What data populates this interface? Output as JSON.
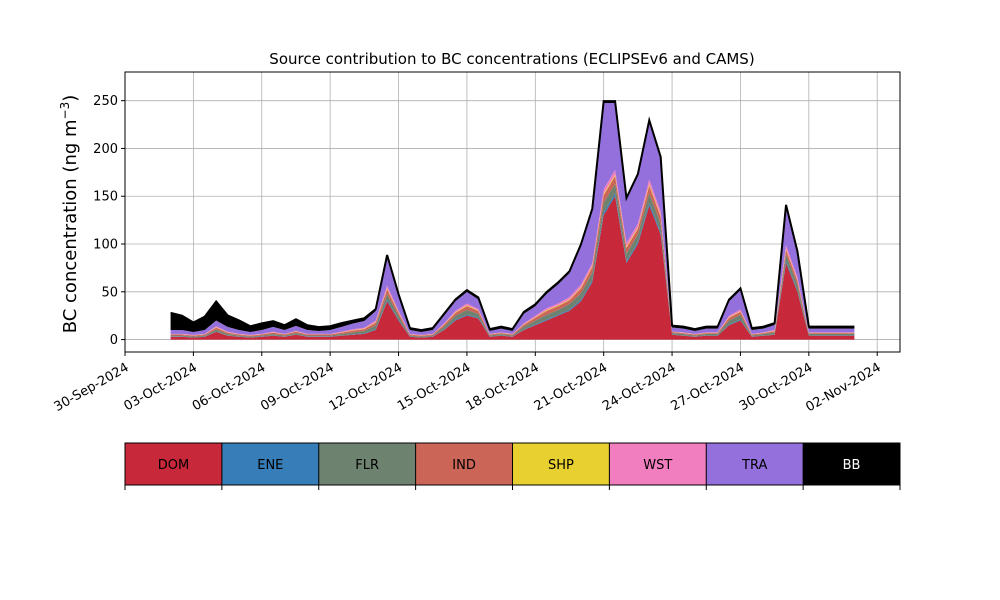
{
  "chart_data": {
    "type": "area",
    "stacked": true,
    "title": "Source contribution to BC concentrations (ECLIPSEv6 and CAMS)",
    "ylabel_main": "BC concentration (ng m",
    "ylabel_sup": "−3",
    "ylabel_close": ")",
    "xlabel": "",
    "ylim": [
      -13,
      280
    ],
    "xlim": [
      "2024-09-30",
      "2024-11-03"
    ],
    "grid": true,
    "x_ticks": [
      "30-Sep-2024",
      "03-Oct-2024",
      "06-Oct-2024",
      "09-Oct-2024",
      "12-Oct-2024",
      "15-Oct-2024",
      "18-Oct-2024",
      "21-Oct-2024",
      "24-Oct-2024",
      "27-Oct-2024",
      "30-Oct-2024",
      "02-Nov-2024"
    ],
    "y_ticks": [
      0,
      50,
      100,
      150,
      200,
      250
    ],
    "x": [
      "2024-10-02",
      "2024-10-02T12:00",
      "2024-10-03",
      "2024-10-03T12:00",
      "2024-10-04",
      "2024-10-04T12:00",
      "2024-10-05",
      "2024-10-05T12:00",
      "2024-10-06",
      "2024-10-06T12:00",
      "2024-10-07",
      "2024-10-07T12:00",
      "2024-10-08",
      "2024-10-08T12:00",
      "2024-10-09",
      "2024-10-09T12:00",
      "2024-10-10",
      "2024-10-10T12:00",
      "2024-10-11",
      "2024-10-11T12:00",
      "2024-10-12",
      "2024-10-12T12:00",
      "2024-10-13",
      "2024-10-13T12:00",
      "2024-10-14",
      "2024-10-14T12:00",
      "2024-10-15",
      "2024-10-15T12:00",
      "2024-10-16",
      "2024-10-16T12:00",
      "2024-10-17",
      "2024-10-17T12:00",
      "2024-10-18",
      "2024-10-18T12:00",
      "2024-10-19",
      "2024-10-19T12:00",
      "2024-10-20",
      "2024-10-20T12:00",
      "2024-10-21",
      "2024-10-21T12:00",
      "2024-10-22",
      "2024-10-22T12:00",
      "2024-10-23",
      "2024-10-23T12:00",
      "2024-10-24",
      "2024-10-24T12:00",
      "2024-10-25",
      "2024-10-25T12:00",
      "2024-10-26",
      "2024-10-26T12:00",
      "2024-10-27",
      "2024-10-27T12:00",
      "2024-10-28",
      "2024-10-28T12:00",
      "2024-10-29",
      "2024-10-29T12:00",
      "2024-10-30",
      "2024-10-30T12:00",
      "2024-10-31",
      "2024-10-31T12:00",
      "2024-11-01"
    ],
    "series": [
      {
        "name": "DOM",
        "color": "#c7283a",
        "values": [
          3,
          3,
          2,
          3,
          8,
          4,
          3,
          2,
          3,
          4,
          3,
          5,
          3,
          3,
          3,
          4,
          5,
          6,
          10,
          40,
          20,
          3,
          2,
          3,
          10,
          20,
          25,
          22,
          3,
          4,
          3,
          10,
          15,
          20,
          25,
          30,
          40,
          60,
          130,
          150,
          80,
          100,
          140,
          110,
          5,
          4,
          3,
          4,
          4,
          15,
          20,
          3,
          4,
          5,
          80,
          50,
          4,
          4,
          4,
          4,
          4
        ]
      },
      {
        "name": "ENE",
        "color": "#377eb8",
        "values": [
          0.3,
          0.3,
          0.2,
          0.3,
          0.5,
          0.3,
          0.3,
          0.2,
          0.3,
          0.3,
          0.3,
          0.3,
          0.3,
          0.3,
          0.3,
          0.3,
          0.4,
          0.5,
          0.8,
          1.5,
          1,
          0.3,
          0.2,
          0.3,
          0.6,
          1,
          1,
          1,
          0.3,
          0.3,
          0.3,
          0.6,
          0.8,
          1,
          1,
          1.2,
          1.5,
          2,
          3,
          3,
          2,
          2,
          3,
          2.5,
          0.4,
          0.3,
          0.3,
          0.3,
          0.3,
          0.8,
          1,
          0.3,
          0.3,
          0.4,
          2,
          1.5,
          0.3,
          0.3,
          0.3,
          0.3,
          0.3
        ]
      },
      {
        "name": "FLR",
        "color": "#6e8270",
        "values": [
          1,
          1,
          1,
          1,
          2,
          1.5,
          1,
          1,
          1,
          1.5,
          1,
          1.5,
          1,
          1,
          1,
          1.5,
          2,
          2.5,
          4,
          6,
          4,
          1,
          1,
          1,
          3,
          4,
          5,
          4,
          1,
          1.5,
          1,
          3,
          4,
          5,
          5,
          6,
          7,
          8,
          10,
          10,
          8,
          8,
          10,
          9,
          1.5,
          1.5,
          1,
          1.5,
          1.5,
          4,
          5,
          1,
          1.5,
          2,
          7,
          6,
          1.5,
          1.5,
          1.5,
          1.5,
          1.5
        ]
      },
      {
        "name": "IND",
        "color": "#ca6558",
        "values": [
          1,
          1,
          1,
          1,
          2,
          1.5,
          1,
          1,
          1,
          1.5,
          1,
          1.5,
          1,
          1,
          1,
          1.5,
          2,
          2,
          3,
          5,
          3,
          1,
          1,
          1,
          2,
          3,
          4,
          3,
          1,
          1,
          1,
          2,
          3,
          4,
          4,
          4,
          5,
          6,
          8,
          8,
          6,
          6,
          8,
          7,
          1,
          1,
          1,
          1,
          1,
          3,
          3,
          1,
          1,
          1.5,
          5,
          4,
          1,
          1,
          1,
          1,
          1
        ]
      },
      {
        "name": "SHP",
        "color": "#e8d030",
        "values": [
          0.2,
          0.2,
          0.2,
          0.2,
          0.4,
          0.3,
          0.2,
          0.2,
          0.2,
          0.3,
          0.2,
          0.3,
          0.2,
          0.2,
          0.2,
          0.3,
          0.4,
          0.4,
          0.6,
          1,
          0.6,
          0.2,
          0.2,
          0.2,
          0.4,
          0.6,
          0.8,
          0.6,
          0.2,
          0.2,
          0.2,
          0.4,
          0.6,
          0.8,
          0.8,
          0.8,
          1,
          1,
          1.5,
          1.5,
          1.2,
          1.2,
          1.5,
          1.3,
          0.2,
          0.2,
          0.2,
          0.2,
          0.2,
          0.6,
          0.6,
          0.2,
          0.2,
          0.3,
          1,
          0.8,
          0.2,
          0.2,
          0.2,
          0.2,
          0.2
        ]
      },
      {
        "name": "WST",
        "color": "#f17fbf",
        "values": [
          0.5,
          0.5,
          0.5,
          0.5,
          1,
          0.7,
          0.5,
          0.5,
          0.5,
          0.7,
          0.5,
          0.7,
          0.5,
          0.5,
          0.5,
          0.7,
          1,
          1,
          1.5,
          3,
          2,
          0.5,
          0.5,
          0.5,
          1,
          1.5,
          2,
          1.5,
          0.5,
          0.5,
          0.5,
          1,
          1.5,
          2,
          2,
          2.5,
          3,
          3,
          5,
          5,
          4,
          4,
          5,
          4.5,
          0.5,
          0.5,
          0.5,
          0.5,
          0.5,
          1.5,
          2,
          0.5,
          0.5,
          1,
          4,
          3,
          0.5,
          0.5,
          0.5,
          0.5,
          0.5
        ]
      },
      {
        "name": "TRA",
        "color": "#9370db",
        "values": [
          4,
          4,
          3,
          4,
          6,
          5,
          4,
          3,
          4,
          5,
          4,
          5,
          4,
          3,
          4,
          5,
          6,
          7,
          10,
          30,
          15,
          4,
          3,
          4,
          8,
          10,
          12,
          10,
          3,
          4,
          3,
          10,
          10,
          15,
          20,
          25,
          40,
          55,
          90,
          70,
          45,
          50,
          60,
          55,
          4,
          4,
          3,
          4,
          4,
          15,
          20,
          4,
          4,
          5,
          40,
          25,
          4,
          4,
          4,
          4,
          4
        ]
      },
      {
        "name": "BB",
        "color": "#000000",
        "values": [
          18,
          15,
          10,
          14,
          20,
          12,
          10,
          6,
          7,
          6,
          5,
          7,
          5,
          4,
          4,
          4,
          3,
          3,
          2,
          2,
          2,
          2,
          2,
          2,
          2,
          2,
          2,
          2,
          2,
          2,
          2,
          2,
          2,
          2,
          2,
          2,
          2,
          2,
          2,
          2,
          2,
          2,
          2,
          2,
          2,
          2,
          2,
          2,
          2,
          2,
          2,
          2,
          2,
          2,
          2,
          2,
          2,
          2,
          2,
          2,
          2
        ]
      }
    ],
    "legend": {
      "placement": "below-chart",
      "items": [
        {
          "label": "DOM",
          "color": "#c7283a",
          "text_color": "#000000"
        },
        {
          "label": "ENE",
          "color": "#377eb8",
          "text_color": "#000000"
        },
        {
          "label": "FLR",
          "color": "#6e8270",
          "text_color": "#000000"
        },
        {
          "label": "IND",
          "color": "#ca6558",
          "text_color": "#000000"
        },
        {
          "label": "SHP",
          "color": "#e8d030",
          "text_color": "#000000"
        },
        {
          "label": "WST",
          "color": "#f17fbf",
          "text_color": "#000000"
        },
        {
          "label": "TRA",
          "color": "#9370db",
          "text_color": "#000000"
        },
        {
          "label": "BB",
          "color": "#000000",
          "text_color": "#ffffff"
        }
      ]
    }
  }
}
